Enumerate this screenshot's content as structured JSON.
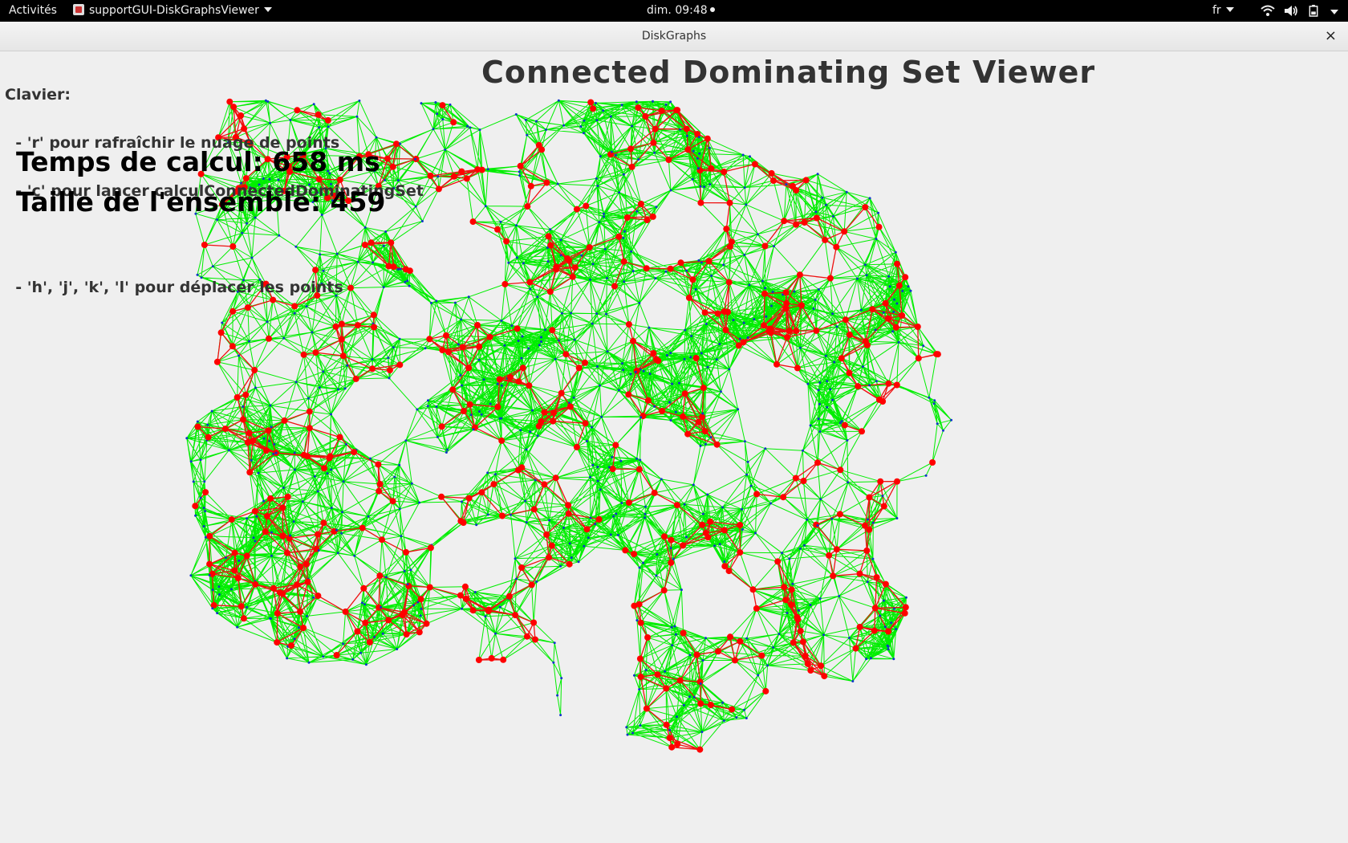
{
  "topbar": {
    "activities": "Activités",
    "app_name": "supportGUI-DiskGraphsViewer",
    "clock": "dim. 09:48",
    "language": "fr",
    "icons": [
      "wifi-icon",
      "volume-icon",
      "battery-icon",
      "power-menu-icon"
    ]
  },
  "window": {
    "title": "DiskGraphs",
    "close_symbol": "×"
  },
  "viewer": {
    "title": "Connected Dominating Set Viewer",
    "help_lines": [
      "Clavier:",
      "  - 'r' pour rafraîchir le nuage de points",
      "  - 'c' pour lancer calculConnectedDominatingSet",
      "",
      "  - 'h', 'j', 'k', 'l' pour déplacer les points"
    ],
    "compute_time": "Temps de calcul: 658 ms",
    "set_size": "Taille de l'ensemble: 459"
  },
  "graph": {
    "colors": {
      "edge": "#00ee00",
      "dominating_edge": "#ee1111",
      "dominating_node": "#ff0000",
      "other_node": "#1133cc"
    }
  }
}
